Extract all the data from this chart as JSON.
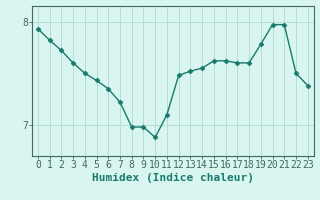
{
  "x": [
    0,
    1,
    2,
    3,
    4,
    5,
    6,
    7,
    8,
    9,
    10,
    11,
    12,
    13,
    14,
    15,
    16,
    17,
    18,
    19,
    20,
    21,
    22,
    23
  ],
  "y": [
    7.93,
    7.82,
    7.72,
    7.6,
    7.5,
    7.43,
    7.35,
    7.22,
    6.98,
    6.98,
    6.88,
    7.1,
    7.48,
    7.52,
    7.55,
    7.62,
    7.62,
    7.6,
    7.6,
    7.78,
    7.97,
    7.97,
    7.5,
    7.38
  ],
  "line_color": "#1a7a6e",
  "marker": "D",
  "marker_size": 2.5,
  "bg_color": "#d8f5f0",
  "grid_color": "#b8ddd8",
  "xlabel": "Humidex (Indice chaleur)",
  "ylim": [
    6.7,
    8.15
  ],
  "yticks": [
    7,
    8
  ],
  "xlim": [
    -0.5,
    23.5
  ],
  "axis_color": "#446666",
  "xlabel_fontsize": 8,
  "tick_fontsize": 7,
  "linewidth": 1.0
}
